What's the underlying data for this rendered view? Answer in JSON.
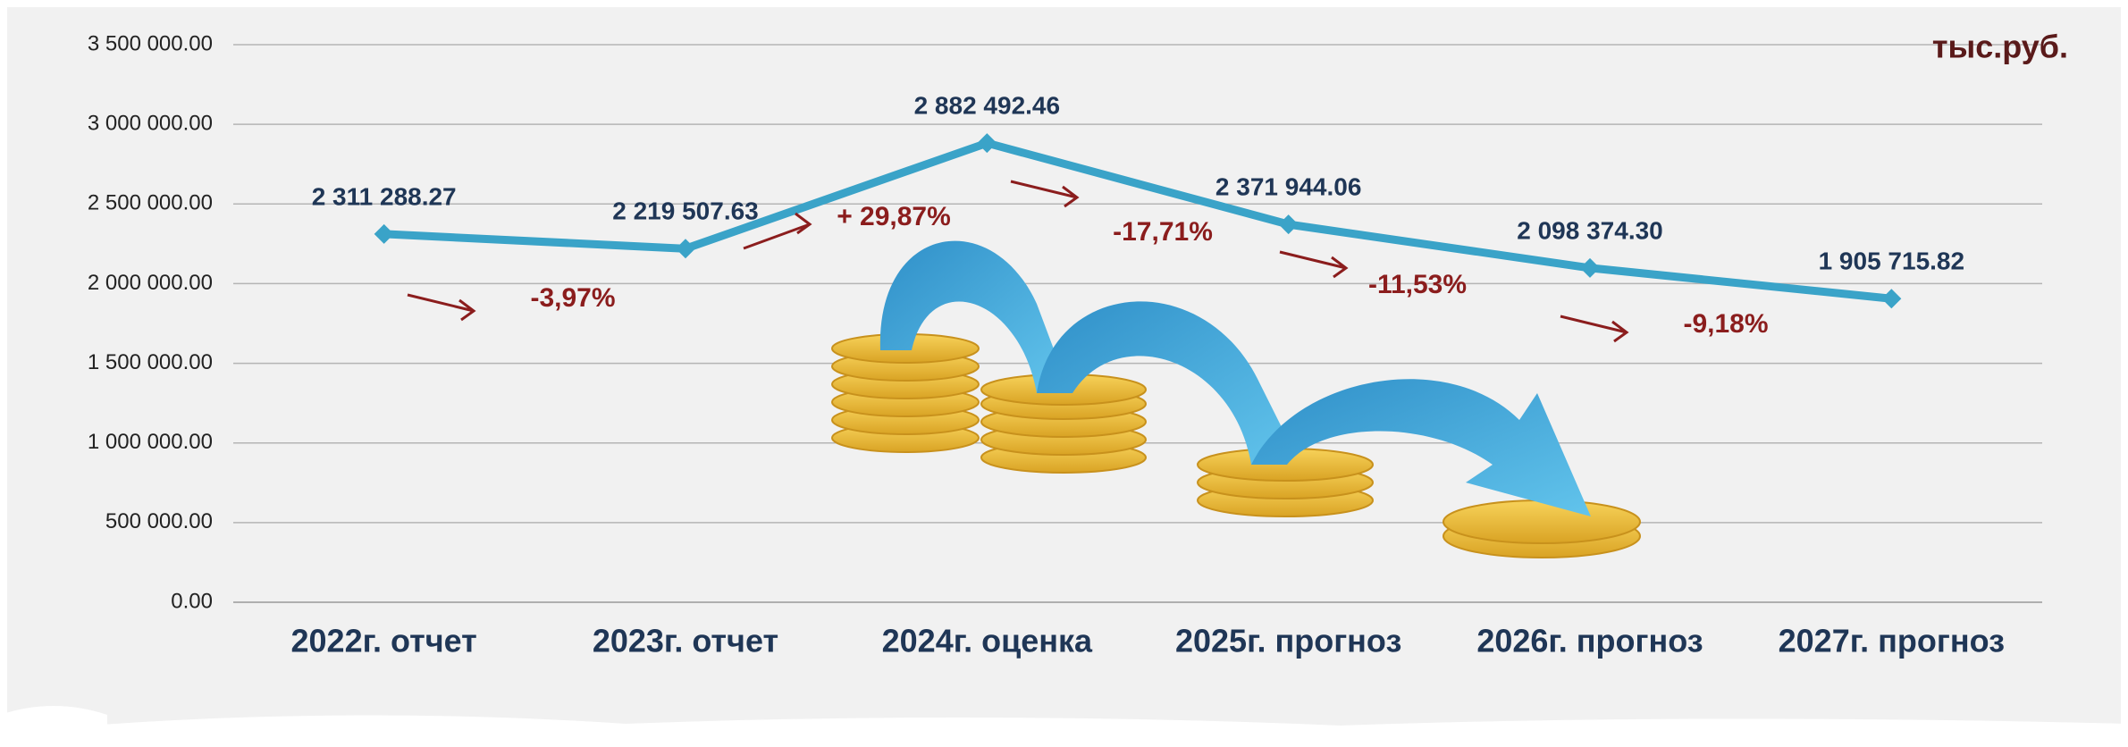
{
  "chart_data": {
    "type": "line",
    "unit": "тыс.руб.",
    "categories": [
      "2022г. отчет",
      "2023г. отчет",
      "2024г. оценка",
      "2025г. прогноз",
      "2026г. прогноз",
      "2027г. прогноз"
    ],
    "values": [
      2311288.27,
      2219507.63,
      2882492.46,
      2371944.06,
      2098374.3,
      1905715.82
    ],
    "value_labels": [
      "2 311 288.27",
      "2 219 507.63",
      "2 882 492.46",
      "2 371 944.06",
      "2 098 374.30",
      "1 905 715.82"
    ],
    "color": "#3aa3c8",
    "annotations": [
      "-3,97%",
      "+ 29,87%",
      "-17,71%",
      "-11,53%",
      "-9,18%"
    ],
    "ylim": [
      0,
      3500000
    ],
    "yticks": [
      {
        "value": 0,
        "label": "0.00"
      },
      {
        "value": 500000,
        "label": "500 000.00"
      },
      {
        "value": 1000000,
        "label": "1 000 000.00"
      },
      {
        "value": 1500000,
        "label": "1 500 000.00"
      },
      {
        "value": 2000000,
        "label": "2 000 000.00"
      },
      {
        "value": 2500000,
        "label": "2 500 000.00"
      },
      {
        "value": 3000000,
        "label": "3 000 000.00"
      },
      {
        "value": 3500000,
        "label": "3 500 000.00"
      }
    ],
    "grid": true
  }
}
